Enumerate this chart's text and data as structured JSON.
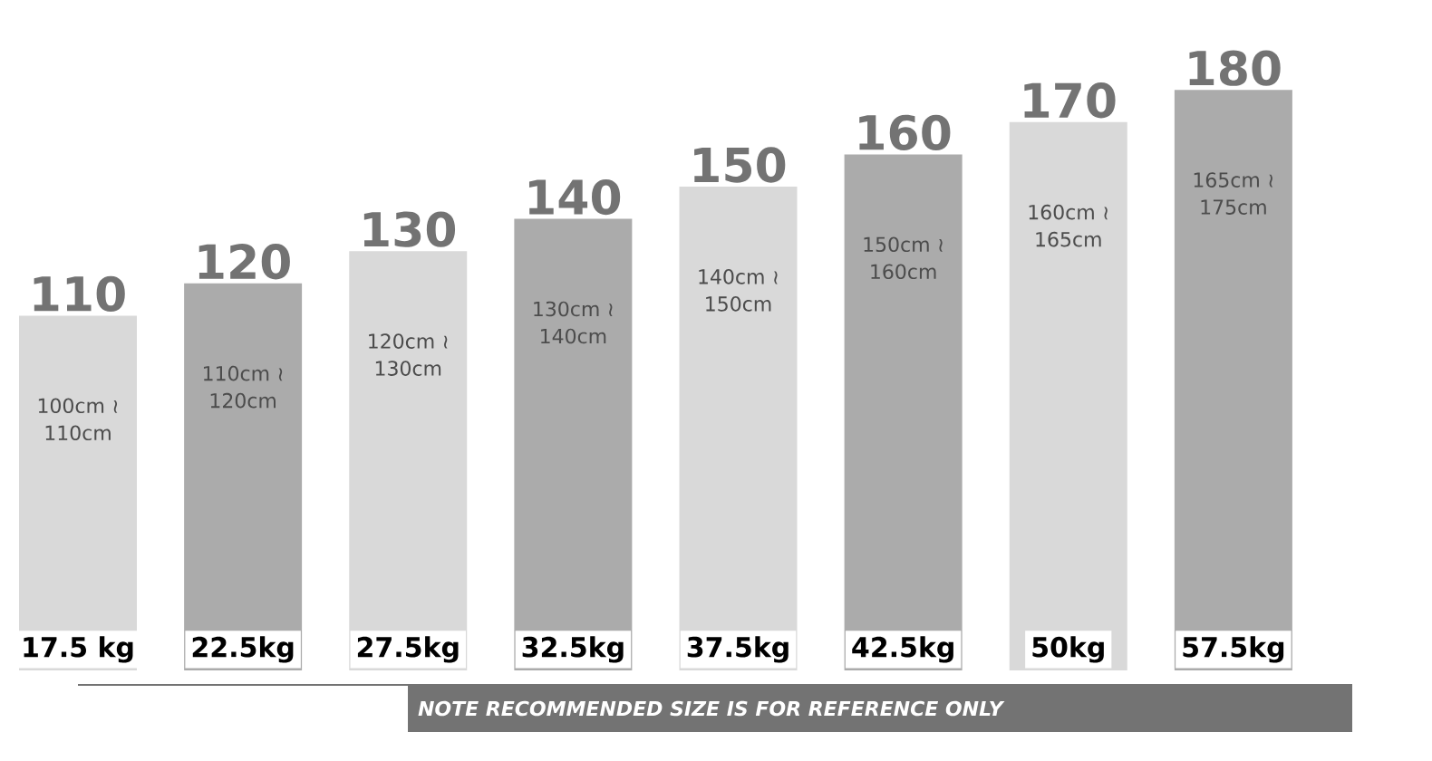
{
  "chart_data": {
    "type": "bar",
    "categories": [
      "17.5 kg",
      "22.5kg",
      "27.5kg",
      "32.5kg",
      "37.5kg",
      "42.5kg",
      "50kg",
      "57.5kg"
    ],
    "values": [
      110,
      120,
      130,
      140,
      150,
      160,
      170,
      180
    ],
    "colors": [
      "#d9d9d9",
      "#ababab",
      "#d9d9d9",
      "#ababab",
      "#d9d9d9",
      "#ababab",
      "#d9d9d9",
      "#ababab"
    ],
    "tick_labels": "x",
    "data_labels": true,
    "annotations": [
      "100cm ≀ 110cm",
      "110cm ≀ 120cm",
      "120cm ≀ 130cm",
      "130cm ≀ 140cm",
      "140cm ≀ 150cm",
      "150cm ≀ 160cm",
      "160cm ≀ 165cm",
      "165cm ≀ 175cm",
      "NOTE RECOMMENDED SIZE IS FOR REFERENCE ONLY"
    ]
  }
}
